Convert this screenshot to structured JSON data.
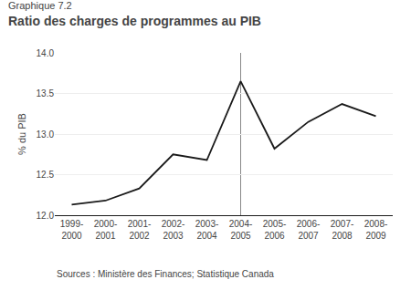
{
  "chart_data": {
    "type": "line",
    "title": "Ratio des charges de programmes au PIB",
    "subtitle": "Graphique 7.2",
    "ylabel": "% du PIB",
    "annotations": [
      "Sources : Ministère des Finances; Statistique Canada"
    ],
    "categories": [
      "1999-\n2000",
      "2000-\n2001",
      "2001-\n2002",
      "2002-\n2003",
      "2003-\n2004",
      "2004-\n2005",
      "2005-\n2006",
      "2006-\n2007",
      "2007-\n2008",
      "2008-\n2009"
    ],
    "values": [
      12.13,
      12.18,
      12.33,
      12.75,
      12.68,
      13.65,
      12.82,
      13.15,
      13.37,
      13.22
    ],
    "color": "#1a1a1a",
    "reference_line": {
      "category": "2004-\n2005",
      "color": "#888888"
    },
    "ylim": [
      12,
      14
    ],
    "yticks": [
      {
        "value": 12,
        "label": "12.0"
      },
      12.5,
      {
        "value": 13,
        "label": "13.0"
      },
      13.5,
      {
        "value": 14,
        "label": "14.0"
      }
    ],
    "grid": true
  }
}
